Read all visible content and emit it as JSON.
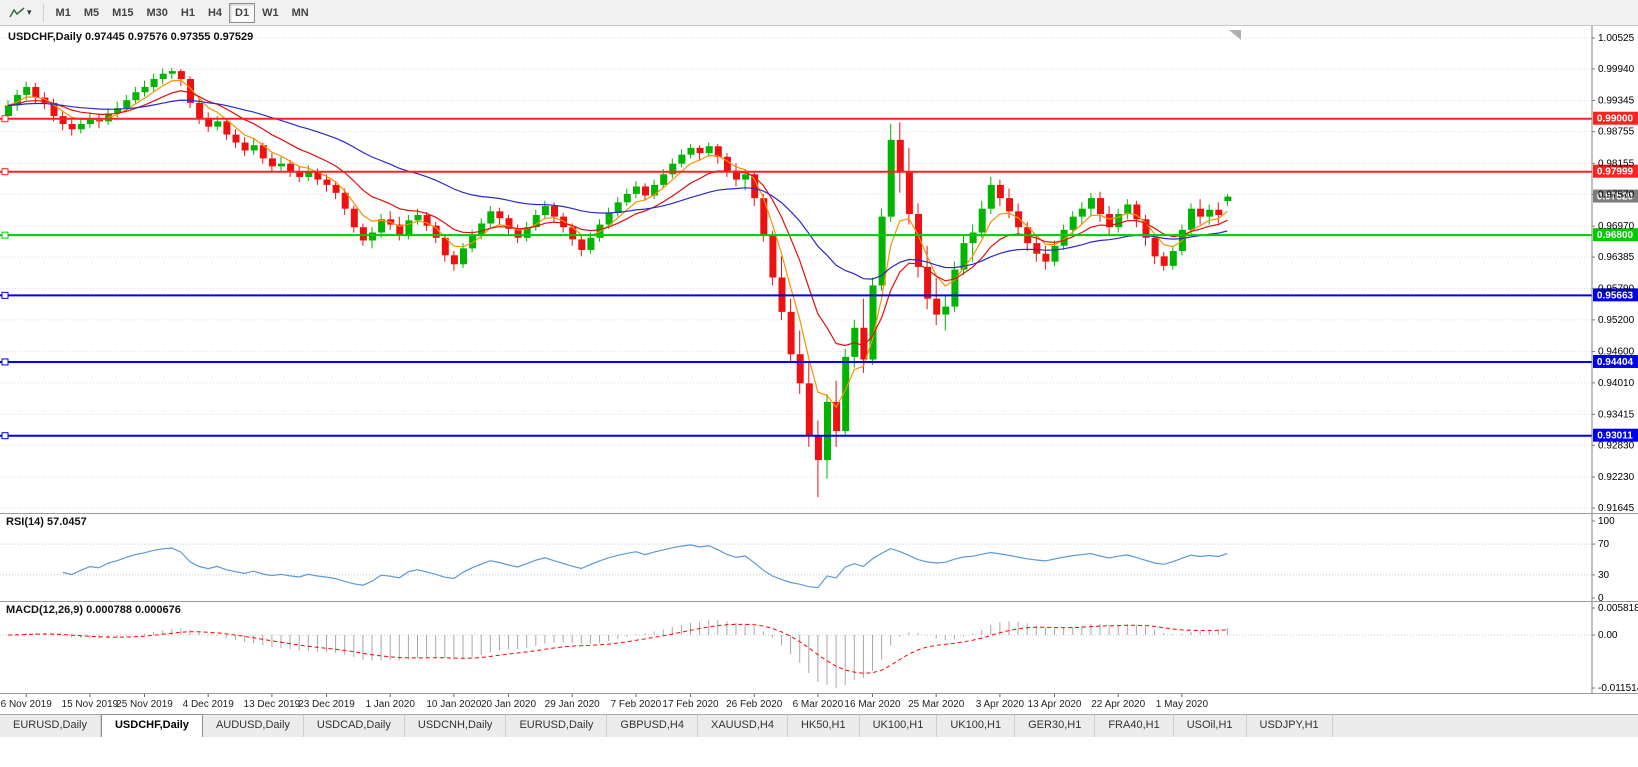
{
  "headers": {
    "chart_title": "USDCHF,Daily 0.97445 0.97576 0.97355 0.97529",
    "rsi": "RSI(14) 57.0457",
    "macd": "MACD(12,26,9) 0.000788 0.000676"
  },
  "toolbar": {
    "chart_tool_icon": "zigzag-chart-icon",
    "timeframes": [
      "M1",
      "M5",
      "M15",
      "M30",
      "H1",
      "H4",
      "D1",
      "W1",
      "MN"
    ],
    "selected_timeframe": "D1"
  },
  "tabs": {
    "items": [
      {
        "label": "EURUSD,Daily",
        "active": false
      },
      {
        "label": "USDCHF,Daily",
        "active": true
      },
      {
        "label": "AUDUSD,Daily",
        "active": false
      },
      {
        "label": "USDCAD,Daily",
        "active": false
      },
      {
        "label": "USDCNH,Daily",
        "active": false
      },
      {
        "label": "EURUSD,Daily",
        "active": false
      },
      {
        "label": "GBPUSD,H4",
        "active": false
      },
      {
        "label": "XAUUSD,H4",
        "active": false
      },
      {
        "label": "HK50,H1",
        "active": false
      },
      {
        "label": "UK100,H1",
        "active": false
      },
      {
        "label": "UK100,H1",
        "active": false
      },
      {
        "label": "GER30,H1",
        "active": false
      },
      {
        "label": "FRA40,H1",
        "active": false
      },
      {
        "label": "USOil,H1",
        "active": false
      },
      {
        "label": "USDJPY,H1",
        "active": false
      }
    ]
  },
  "chart_data": {
    "type": "candlestick",
    "symbol": "USDCHF",
    "timeframe": "Daily",
    "last_ohlc": {
      "open": 0.97445,
      "high": 0.97576,
      "low": 0.97355,
      "close": 0.97529
    },
    "colors": {
      "up": "#00b400",
      "down": "#ee1111"
    },
    "price_axis": {
      "min": 0.91645,
      "max": 1.00525,
      "ticks": [
        1.00525,
        0.9994,
        0.99345,
        0.98755,
        0.98155,
        0.9757,
        0.9697,
        0.96385,
        0.9579,
        0.952,
        0.946,
        0.9401,
        0.93415,
        0.9283,
        0.9223,
        0.91645
      ]
    },
    "x_ticks": {
      "indices": [
        2,
        9,
        15,
        22,
        29,
        35,
        42,
        49,
        55,
        62,
        69,
        75,
        82,
        89,
        95,
        102,
        109,
        115,
        122,
        129
      ],
      "labels": [
        "6 Nov 2019",
        "15 Nov 2019",
        "25 Nov 2019",
        "4 Dec 2019",
        "13 Dec 2019",
        "23 Dec 2019",
        "1 Jan 2020",
        "10 Jan 2020",
        "20 Jan 2020",
        "29 Jan 2020",
        "7 Feb 2020",
        "17 Feb 2020",
        "26 Feb 2020",
        "6 Mar 2020",
        "16 Mar 2020",
        "25 Mar 2020",
        "3 Apr 2020",
        "13 Apr 2020",
        "22 Apr 2020",
        "1 May 2020"
      ]
    },
    "candles": [
      [
        0.9905,
        0.9935,
        0.9895,
        0.9925
      ],
      [
        0.9925,
        0.9955,
        0.9915,
        0.9945
      ],
      [
        0.9945,
        0.997,
        0.9935,
        0.996
      ],
      [
        0.996,
        0.9968,
        0.9928,
        0.994
      ],
      [
        0.994,
        0.995,
        0.9918,
        0.993
      ],
      [
        0.993,
        0.9938,
        0.9895,
        0.9905
      ],
      [
        0.9905,
        0.9915,
        0.9878,
        0.989
      ],
      [
        0.989,
        0.9902,
        0.9868,
        0.988
      ],
      [
        0.988,
        0.99,
        0.9872,
        0.989
      ],
      [
        0.989,
        0.9912,
        0.9882,
        0.99
      ],
      [
        0.99,
        0.991,
        0.9882,
        0.9895
      ],
      [
        0.9895,
        0.992,
        0.9888,
        0.991
      ],
      [
        0.991,
        0.9932,
        0.9902,
        0.992
      ],
      [
        0.992,
        0.9945,
        0.9912,
        0.9935
      ],
      [
        0.9935,
        0.996,
        0.9928,
        0.995
      ],
      [
        0.995,
        0.9972,
        0.9942,
        0.996
      ],
      [
        0.996,
        0.9985,
        0.9952,
        0.9975
      ],
      [
        0.9975,
        0.9995,
        0.9965,
        0.9985
      ],
      [
        0.9985,
        0.9996,
        0.9975,
        0.999
      ],
      [
        0.999,
        0.9994,
        0.9962,
        0.9975
      ],
      [
        0.9975,
        0.998,
        0.992,
        0.993
      ],
      [
        0.993,
        0.9942,
        0.989,
        0.99
      ],
      [
        0.99,
        0.9912,
        0.9875,
        0.9885
      ],
      [
        0.9885,
        0.9905,
        0.9878,
        0.9895
      ],
      [
        0.9895,
        0.99,
        0.986,
        0.987
      ],
      [
        0.987,
        0.988,
        0.9845,
        0.9855
      ],
      [
        0.9855,
        0.9865,
        0.983,
        0.984
      ],
      [
        0.984,
        0.9862,
        0.9832,
        0.985
      ],
      [
        0.985,
        0.9855,
        0.9815,
        0.9825
      ],
      [
        0.9825,
        0.9835,
        0.98,
        0.981
      ],
      [
        0.981,
        0.9828,
        0.9802,
        0.9815
      ],
      [
        0.9815,
        0.9822,
        0.979,
        0.98
      ],
      [
        0.98,
        0.981,
        0.978,
        0.979
      ],
      [
        0.979,
        0.9812,
        0.9782,
        0.98
      ],
      [
        0.98,
        0.9806,
        0.9775,
        0.9785
      ],
      [
        0.9785,
        0.9795,
        0.9762,
        0.9775
      ],
      [
        0.9775,
        0.9782,
        0.9748,
        0.976
      ],
      [
        0.976,
        0.9768,
        0.9718,
        0.973
      ],
      [
        0.973,
        0.9736,
        0.9685,
        0.9695
      ],
      [
        0.9695,
        0.9702,
        0.966,
        0.967
      ],
      [
        0.967,
        0.9695,
        0.9655,
        0.9685
      ],
      [
        0.9685,
        0.972,
        0.9675,
        0.971
      ],
      [
        0.971,
        0.9725,
        0.969,
        0.97
      ],
      [
        0.97,
        0.9715,
        0.967,
        0.968
      ],
      [
        0.968,
        0.9718,
        0.9672,
        0.9708
      ],
      [
        0.9708,
        0.973,
        0.97,
        0.9718
      ],
      [
        0.9718,
        0.9724,
        0.9688,
        0.9698
      ],
      [
        0.9698,
        0.9705,
        0.9665,
        0.9675
      ],
      [
        0.9675,
        0.968,
        0.963,
        0.9642
      ],
      [
        0.9642,
        0.965,
        0.9613,
        0.9625
      ],
      [
        0.9625,
        0.9665,
        0.9618,
        0.9655
      ],
      [
        0.9655,
        0.969,
        0.9648,
        0.968
      ],
      [
        0.968,
        0.9712,
        0.9672,
        0.9702
      ],
      [
        0.9702,
        0.9735,
        0.9695,
        0.9725
      ],
      [
        0.9725,
        0.9732,
        0.97,
        0.9712
      ],
      [
        0.9712,
        0.9718,
        0.9682,
        0.9692
      ],
      [
        0.9692,
        0.97,
        0.9665,
        0.9675
      ],
      [
        0.9675,
        0.9705,
        0.9668,
        0.9695
      ],
      [
        0.9695,
        0.9728,
        0.9688,
        0.9718
      ],
      [
        0.9718,
        0.9745,
        0.971,
        0.9735
      ],
      [
        0.9735,
        0.9742,
        0.9705,
        0.9715
      ],
      [
        0.9715,
        0.9722,
        0.9685,
        0.9695
      ],
      [
        0.9695,
        0.9702,
        0.966,
        0.9672
      ],
      [
        0.9672,
        0.968,
        0.964,
        0.9652
      ],
      [
        0.9652,
        0.9685,
        0.9645,
        0.9675
      ],
      [
        0.9675,
        0.971,
        0.9668,
        0.97
      ],
      [
        0.97,
        0.9732,
        0.9692,
        0.9722
      ],
      [
        0.9722,
        0.9752,
        0.9715,
        0.9742
      ],
      [
        0.9742,
        0.9768,
        0.9735,
        0.9758
      ],
      [
        0.9758,
        0.9782,
        0.975,
        0.9772
      ],
      [
        0.9772,
        0.9778,
        0.9745,
        0.9755
      ],
      [
        0.9755,
        0.9785,
        0.9748,
        0.9775
      ],
      [
        0.9775,
        0.9805,
        0.9768,
        0.9795
      ],
      [
        0.9795,
        0.9825,
        0.9788,
        0.9815
      ],
      [
        0.9815,
        0.9842,
        0.9808,
        0.9832
      ],
      [
        0.9832,
        0.9852,
        0.9825,
        0.9845
      ],
      [
        0.9845,
        0.985,
        0.9822,
        0.9835
      ],
      [
        0.9835,
        0.9855,
        0.9828,
        0.9848
      ],
      [
        0.9848,
        0.9852,
        0.9815,
        0.9828
      ],
      [
        0.9828,
        0.9835,
        0.979,
        0.9802
      ],
      [
        0.9802,
        0.9816,
        0.9772,
        0.9785
      ],
      [
        0.9785,
        0.9805,
        0.9765,
        0.9795
      ],
      [
        0.9795,
        0.98,
        0.9735,
        0.975
      ],
      [
        0.975,
        0.9758,
        0.9668,
        0.968
      ],
      [
        0.968,
        0.9688,
        0.9585,
        0.96
      ],
      [
        0.96,
        0.964,
        0.952,
        0.9535
      ],
      [
        0.9535,
        0.956,
        0.944,
        0.9455
      ],
      [
        0.9455,
        0.95,
        0.938,
        0.94
      ],
      [
        0.94,
        0.944,
        0.928,
        0.93
      ],
      [
        0.93,
        0.933,
        0.9185,
        0.9255
      ],
      [
        0.9255,
        0.938,
        0.922,
        0.9365
      ],
      [
        0.9365,
        0.9405,
        0.928,
        0.931
      ],
      [
        0.931,
        0.9465,
        0.93,
        0.945
      ],
      [
        0.945,
        0.952,
        0.943,
        0.9505
      ],
      [
        0.9505,
        0.956,
        0.942,
        0.9445
      ],
      [
        0.9445,
        0.96,
        0.9435,
        0.9585
      ],
      [
        0.9585,
        0.973,
        0.9575,
        0.9715
      ],
      [
        0.9715,
        0.989,
        0.9705,
        0.986
      ],
      [
        0.986,
        0.9893,
        0.976,
        0.98
      ],
      [
        0.98,
        0.9845,
        0.97,
        0.972
      ],
      [
        0.972,
        0.974,
        0.96,
        0.962
      ],
      [
        0.962,
        0.966,
        0.954,
        0.956
      ],
      [
        0.956,
        0.96,
        0.951,
        0.953
      ],
      [
        0.953,
        0.9565,
        0.95,
        0.9545
      ],
      [
        0.9545,
        0.963,
        0.9535,
        0.9615
      ],
      [
        0.9615,
        0.968,
        0.9605,
        0.9665
      ],
      [
        0.9665,
        0.97,
        0.963,
        0.9685
      ],
      [
        0.9685,
        0.9745,
        0.9675,
        0.973
      ],
      [
        0.973,
        0.979,
        0.972,
        0.9775
      ],
      [
        0.9775,
        0.9785,
        0.9735,
        0.975
      ],
      [
        0.975,
        0.9768,
        0.9712,
        0.9725
      ],
      [
        0.9725,
        0.974,
        0.968,
        0.9695
      ],
      [
        0.9695,
        0.9705,
        0.965,
        0.9665
      ],
      [
        0.9665,
        0.968,
        0.963,
        0.9645
      ],
      [
        0.9645,
        0.966,
        0.9615,
        0.963
      ],
      [
        0.963,
        0.967,
        0.9622,
        0.966
      ],
      [
        0.966,
        0.97,
        0.9652,
        0.969
      ],
      [
        0.969,
        0.9725,
        0.9682,
        0.9715
      ],
      [
        0.9715,
        0.9742,
        0.97,
        0.973
      ],
      [
        0.973,
        0.976,
        0.9715,
        0.975
      ],
      [
        0.975,
        0.9762,
        0.9705,
        0.972
      ],
      [
        0.972,
        0.9735,
        0.968,
        0.9695
      ],
      [
        0.9695,
        0.973,
        0.9685,
        0.972
      ],
      [
        0.972,
        0.9748,
        0.971,
        0.9738
      ],
      [
        0.9738,
        0.9745,
        0.9695,
        0.971
      ],
      [
        0.971,
        0.9718,
        0.966,
        0.9675
      ],
      [
        0.9675,
        0.9682,
        0.9625,
        0.964
      ],
      [
        0.964,
        0.9648,
        0.9613,
        0.9622
      ],
      [
        0.9622,
        0.966,
        0.9615,
        0.965
      ],
      [
        0.965,
        0.97,
        0.9642,
        0.969
      ],
      [
        0.969,
        0.974,
        0.9682,
        0.973
      ],
      [
        0.973,
        0.9748,
        0.97,
        0.9715
      ],
      [
        0.9715,
        0.9738,
        0.97,
        0.9728
      ],
      [
        0.9728,
        0.9742,
        0.9702,
        0.9718
      ],
      [
        0.97445,
        0.97576,
        0.97355,
        0.97529
      ]
    ],
    "moving_averages": [
      {
        "period": 5,
        "color": "#f59300"
      },
      {
        "period": 12,
        "color": "#e01010"
      },
      {
        "period": 34,
        "color": "#2a2ac8"
      }
    ],
    "hlines": [
      {
        "price": 0.99,
        "color": "#ff2020",
        "label": "0.99000"
      },
      {
        "price": 0.97999,
        "color": "#ff2020",
        "label": "0.97999"
      },
      {
        "price": 0.968,
        "color": "#00cc00",
        "label": "0.96800"
      },
      {
        "price": 0.95663,
        "color": "#0000ee",
        "label": "0.95663"
      },
      {
        "price": 0.94404,
        "color": "#0000ee",
        "label": "0.94404"
      },
      {
        "price": 0.93011,
        "color": "#0000ee",
        "label": "0.93011"
      }
    ],
    "current_price": {
      "value": "0.97529",
      "badge_color": "#7d7d7d"
    },
    "rsi": {
      "name": "RSI",
      "period": 14,
      "value": 57.0457,
      "levels": [
        100,
        70,
        30,
        0
      ],
      "line_color": "#5b9bd5"
    },
    "macd": {
      "name": "MACD",
      "fast": 12,
      "slow": 26,
      "signal": 9,
      "value": 0.000788,
      "signal_value": 0.000676,
      "axis": [
        "0.005818",
        "0.00",
        "-0.011514"
      ],
      "hist_color": "#a8a8a8",
      "signal_color": "#ff0000"
    }
  }
}
